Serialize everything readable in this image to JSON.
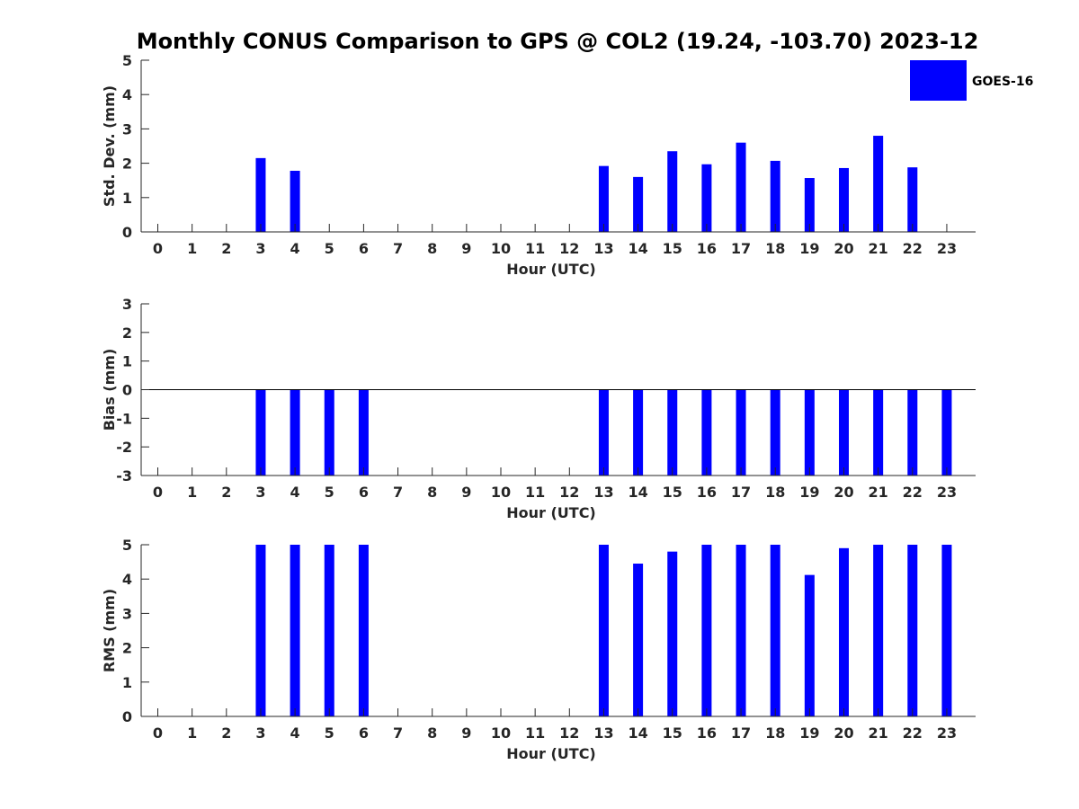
{
  "title": "Monthly CONUS Comparison to GPS @ COL2 (19.24, -103.70) 2023-12",
  "legend": {
    "label": "GOES-16",
    "placement": "top-right",
    "color": "#0000ff"
  },
  "colors": {
    "bar": "#0000ff",
    "axis": "#262626",
    "zero_line": "#000000"
  },
  "chart_data": [
    {
      "type": "bar",
      "title": "Monthly CONUS Comparison to GPS @ COL2 (19.24, -103.70) 2023-12",
      "xlabel": "Hour (UTC)",
      "ylabel": "Std. Dev. (mm)",
      "categories": [
        "0",
        "1",
        "2",
        "3",
        "4",
        "5",
        "6",
        "7",
        "8",
        "9",
        "10",
        "11",
        "12",
        "13",
        "14",
        "15",
        "16",
        "17",
        "18",
        "19",
        "20",
        "21",
        "22",
        "23"
      ],
      "yticks": [
        0,
        1,
        2,
        3,
        4,
        5
      ],
      "ylim": [
        0,
        5
      ],
      "grid": false,
      "series": [
        {
          "name": "GOES-16",
          "values": [
            null,
            null,
            null,
            2.15,
            1.78,
            null,
            null,
            null,
            null,
            null,
            null,
            null,
            null,
            1.92,
            1.6,
            2.35,
            1.97,
            2.6,
            2.07,
            1.57,
            1.86,
            2.8,
            1.88,
            null
          ]
        }
      ]
    },
    {
      "type": "bar",
      "xlabel": "Hour (UTC)",
      "ylabel": "Bias (mm)",
      "categories": [
        "0",
        "1",
        "2",
        "3",
        "4",
        "5",
        "6",
        "7",
        "8",
        "9",
        "10",
        "11",
        "12",
        "13",
        "14",
        "15",
        "16",
        "17",
        "18",
        "19",
        "20",
        "21",
        "22",
        "23"
      ],
      "yticks": [
        -3,
        -2,
        -1,
        0,
        1,
        2,
        3
      ],
      "ylim": [
        -3,
        3
      ],
      "grid": false,
      "series": [
        {
          "name": "GOES-16",
          "values": [
            null,
            null,
            null,
            -3,
            -3,
            -3,
            -3,
            null,
            null,
            null,
            null,
            null,
            null,
            -3,
            -3,
            -3,
            -3,
            -3,
            -3,
            -3,
            -3,
            -3,
            -3,
            -3
          ]
        }
      ]
    },
    {
      "type": "bar",
      "xlabel": "Hour (UTC)",
      "ylabel": "RMS (mm)",
      "categories": [
        "0",
        "1",
        "2",
        "3",
        "4",
        "5",
        "6",
        "7",
        "8",
        "9",
        "10",
        "11",
        "12",
        "13",
        "14",
        "15",
        "16",
        "17",
        "18",
        "19",
        "20",
        "21",
        "22",
        "23"
      ],
      "yticks": [
        0,
        1,
        2,
        3,
        4,
        5
      ],
      "ylim": [
        0,
        5
      ],
      "grid": false,
      "series": [
        {
          "name": "GOES-16",
          "values": [
            null,
            null,
            null,
            5,
            5,
            5,
            5,
            null,
            null,
            null,
            null,
            null,
            null,
            5,
            4.45,
            4.8,
            5,
            5,
            5,
            4.12,
            4.9,
            5,
            5,
            5
          ]
        }
      ]
    }
  ]
}
